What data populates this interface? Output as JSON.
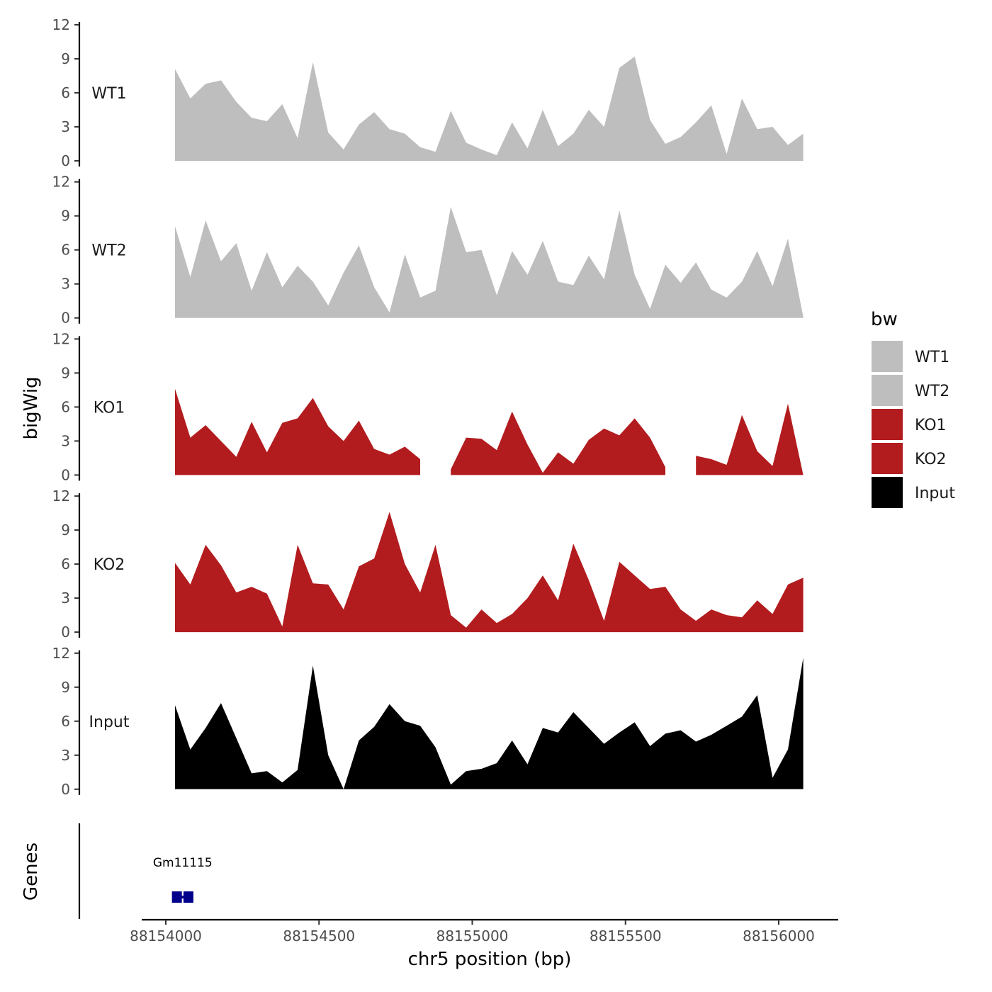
{
  "chart_data": {
    "type": "area",
    "xlabel": "chr5 position (bp)",
    "ylabel": "bigWig",
    "xlim": [
      88153920,
      88156130
    ],
    "x_ticks": [
      88154000,
      88154500,
      88155000,
      88155500,
      88156000
    ],
    "x_tick_labels": [
      "88154000",
      "88154500",
      "88155000",
      "88155500",
      "88156000"
    ],
    "ylim": [
      0,
      12
    ],
    "y_ticks": [
      0,
      3,
      6,
      9,
      12
    ],
    "y_tick_labels": [
      "0",
      "3",
      "6",
      "9",
      "12"
    ],
    "x": [
      88154030,
      88154080,
      88154130,
      88154180,
      88154230,
      88154280,
      88154330,
      88154380,
      88154430,
      88154480,
      88154530,
      88154580,
      88154630,
      88154680,
      88154730,
      88154780,
      88154830,
      88154880,
      88154930,
      88154980,
      88155030,
      88155080,
      88155130,
      88155180,
      88155230,
      88155280,
      88155330,
      88155380,
      88155430,
      88155480,
      88155530,
      88155580,
      88155630,
      88155680,
      88155730,
      88155780,
      88155830,
      88155880,
      88155930,
      88155980,
      88156030,
      88156080
    ],
    "series": [
      {
        "name": "WT1",
        "color": "#bebebe",
        "values": [
          8.1,
          5.5,
          6.8,
          7.1,
          5.2,
          3.8,
          3.5,
          5.0,
          2.0,
          8.7,
          2.5,
          1.0,
          3.2,
          4.3,
          2.8,
          2.4,
          1.2,
          0.8,
          4.4,
          1.6,
          1.0,
          0.5,
          3.4,
          1.1,
          4.5,
          1.3,
          2.4,
          4.5,
          3.0,
          8.2,
          9.2,
          3.6,
          1.5,
          2.1,
          3.4,
          4.9,
          0.6,
          5.5,
          2.8,
          3.0,
          1.4,
          2.4
        ]
      },
      {
        "name": "WT2",
        "color": "#bebebe",
        "values": [
          8.1,
          3.6,
          8.6,
          5.0,
          6.6,
          2.4,
          5.8,
          2.7,
          4.6,
          3.2,
          1.1,
          4.0,
          6.4,
          2.7,
          0.5,
          5.6,
          1.8,
          2.4,
          9.8,
          5.8,
          6.0,
          2.0,
          5.9,
          3.8,
          6.8,
          3.2,
          2.9,
          5.5,
          3.4,
          9.5,
          3.8,
          0.8,
          4.7,
          3.1,
          4.9,
          2.5,
          1.8,
          3.2,
          5.9,
          2.8,
          7.0,
          0.1
        ]
      },
      {
        "name": "KO1",
        "color": "#b21c1e",
        "values": [
          7.6,
          3.3,
          4.4,
          3.0,
          1.6,
          4.7,
          2.0,
          4.6,
          5.0,
          6.8,
          4.3,
          3.0,
          4.8,
          2.3,
          1.8,
          2.5,
          1.4,
          null,
          0.5,
          3.3,
          3.2,
          2.2,
          5.6,
          2.7,
          0.2,
          2.0,
          1.0,
          3.1,
          4.1,
          3.5,
          5.0,
          3.3,
          0.7,
          null,
          1.7,
          1.4,
          0.9,
          5.3,
          2.1,
          0.8,
          6.3,
          0.0
        ]
      },
      {
        "name": "KO2",
        "color": "#b21c1e",
        "values": [
          6.1,
          4.2,
          7.7,
          5.9,
          3.5,
          4.0,
          3.4,
          0.5,
          7.7,
          4.3,
          4.2,
          2.0,
          5.8,
          6.5,
          10.6,
          6.0,
          3.5,
          7.7,
          1.5,
          0.4,
          2.0,
          0.8,
          1.6,
          3.0,
          5.0,
          2.8,
          7.8,
          4.6,
          1.0,
          6.2,
          5.0,
          3.8,
          4.0,
          2.0,
          1.0,
          2.0,
          1.5,
          1.3,
          2.8,
          1.6,
          4.2,
          4.8
        ]
      },
      {
        "name": "Input",
        "color": "#000000",
        "values": [
          7.4,
          3.5,
          5.4,
          7.6,
          4.5,
          1.4,
          1.6,
          0.6,
          1.7,
          10.9,
          3.0,
          0.0,
          4.3,
          5.5,
          7.5,
          6.0,
          5.6,
          3.7,
          0.4,
          1.6,
          1.8,
          2.3,
          4.3,
          2.2,
          5.4,
          5.0,
          6.8,
          5.4,
          4.0,
          5.0,
          5.9,
          3.8,
          4.9,
          5.2,
          4.2,
          4.8,
          5.6,
          6.4,
          8.3,
          1.0,
          3.5,
          11.6
        ]
      }
    ],
    "legend": {
      "title": "bw",
      "position": "right",
      "entries": [
        "WT1",
        "WT2",
        "KO1",
        "KO2",
        "Input"
      ]
    },
    "gene_track": {
      "label": "Genes",
      "genes": [
        {
          "name": "Gm11115",
          "start": 88154020,
          "end": 88154090,
          "color": "#00008b"
        }
      ]
    }
  }
}
